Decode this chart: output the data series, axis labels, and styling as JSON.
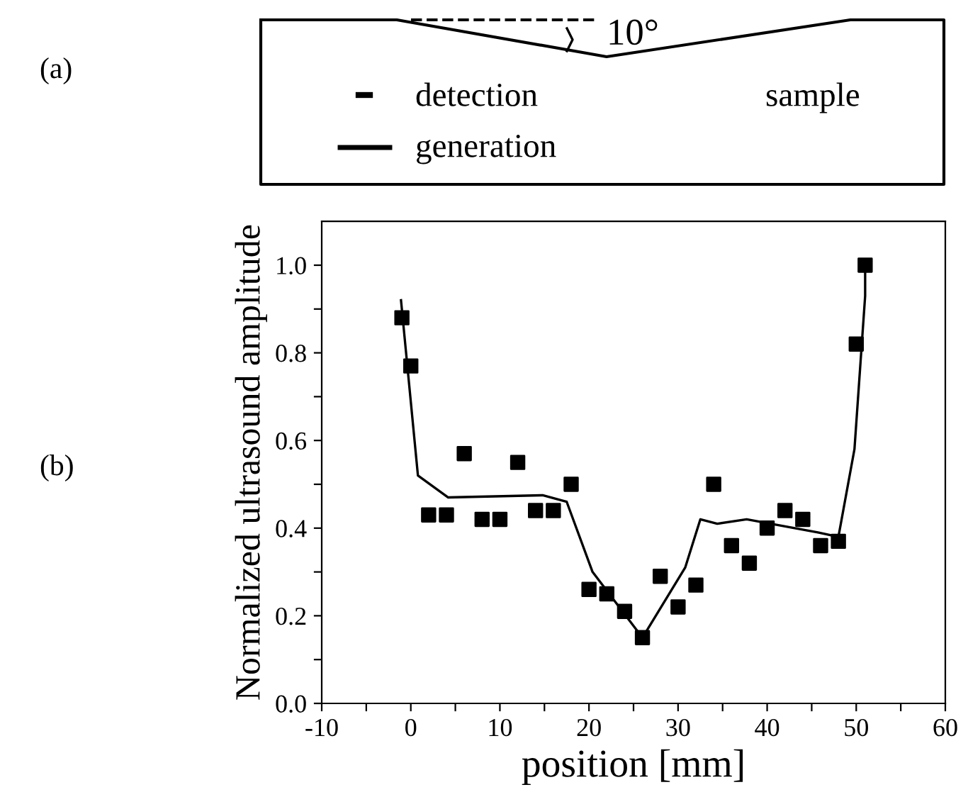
{
  "chart_data": {
    "type": "scatter",
    "xlabel": "position [mm]",
    "ylabel": "Normalized ultrasound amplitude",
    "annotations": [
      "(a)",
      "(b)",
      "10°",
      "detection",
      "generation",
      "sample"
    ],
    "series": [
      {
        "color": "#000000",
        "marker": "square",
        "x": [
          -1,
          0,
          2,
          4,
          6,
          8,
          10,
          12,
          14,
          16,
          18,
          20,
          22,
          24,
          26,
          28,
          30,
          32,
          34,
          36,
          38,
          40,
          42,
          44,
          46,
          48,
          50,
          51
        ],
        "values": [
          0.88,
          0.77,
          0.43,
          0.43,
          0.57,
          0.42,
          0.42,
          0.55,
          0.44,
          0.44,
          0.5,
          0.26,
          0.25,
          0.21,
          0.15,
          0.29,
          0.22,
          0.27,
          0.5,
          0.36,
          0.32,
          0.4,
          0.44,
          0.42,
          0.36,
          0.37,
          0.82,
          1.0
        ]
      },
      {
        "type": "line",
        "color": "#000000",
        "marker": "none",
        "x": [
          -1.1,
          0.8,
          4.2,
          14.8,
          17.5,
          20.4,
          26,
          30.8,
          32.5,
          34.4,
          37.7,
          45.7,
          48,
          49.8,
          51,
          51
        ],
        "values": [
          0.92,
          0.52,
          0.47,
          0.475,
          0.46,
          0.3,
          0.15,
          0.31,
          0.42,
          0.41,
          0.42,
          0.39,
          0.38,
          0.58,
          0.93,
          1.0
        ]
      }
    ],
    "xlim": [
      -10,
      60
    ],
    "xticks": [
      -10,
      {
        "value": -5,
        "label": null
      },
      0,
      {
        "value": 5,
        "label": null
      },
      10,
      {
        "value": 15,
        "label": null
      },
      20,
      {
        "value": 25,
        "label": null
      },
      30,
      {
        "value": 35,
        "label": null
      },
      40,
      {
        "value": 45,
        "label": null
      },
      50,
      {
        "value": 55,
        "label": null
      },
      60
    ],
    "ylim": [
      0,
      1.1
    ],
    "yticks": [
      {
        "value": 0,
        "label": "0.0"
      },
      {
        "value": 0.1,
        "label": null
      },
      {
        "value": 0.2,
        "label": "0.2"
      },
      {
        "value": 0.3,
        "label": null
      },
      {
        "value": 0.4,
        "label": "0.4"
      },
      {
        "value": 0.5,
        "label": null
      },
      {
        "value": 0.6,
        "label": "0.6"
      },
      {
        "value": 0.7,
        "label": null
      },
      {
        "value": 0.8,
        "label": "0.8"
      },
      {
        "value": 0.9,
        "label": null
      },
      {
        "value": 1.0,
        "label": "1.0"
      }
    ],
    "grid": false,
    "legend": false
  }
}
